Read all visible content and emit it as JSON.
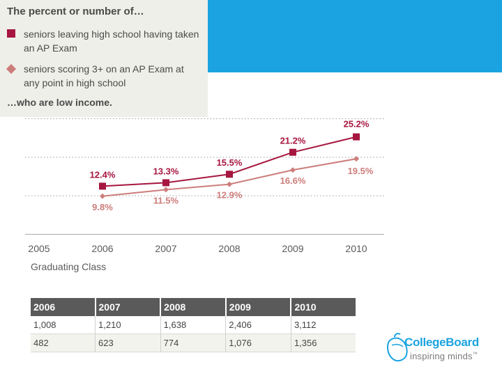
{
  "colors": {
    "series1": "#a6163f",
    "series2": "#cc7d7b",
    "header_band": "#1aa3e0",
    "legend_bg": "#efefe9",
    "table_header": "#5a5a5a"
  },
  "legend": {
    "title": "The percent or number of…",
    "items": [
      {
        "label": "seniors leaving high school having taken an AP Exam",
        "icon": "square-marker-icon"
      },
      {
        "label": "seniors scoring 3+ on an AP Exam at any point in high school",
        "icon": "diamond-marker-icon"
      }
    ],
    "footer": "…who are low income."
  },
  "chart_data": {
    "type": "line",
    "categories": [
      "2005",
      "2006",
      "2007",
      "2008",
      "2009",
      "2010"
    ],
    "xlabel": "Graduating Class",
    "ylabel": "",
    "ylim": [
      0,
      30
    ],
    "grid": true,
    "series": [
      {
        "name": "seniors leaving high school having taken an AP Exam",
        "marker": "square",
        "x": [
          "2006",
          "2007",
          "2008",
          "2009",
          "2010"
        ],
        "values": [
          12.4,
          13.3,
          15.5,
          21.2,
          25.2
        ],
        "labels": [
          "12.4%",
          "13.3%",
          "15.5%",
          "21.2%",
          "25.2%"
        ]
      },
      {
        "name": "seniors scoring 3+ on an AP Exam at any point in high school",
        "marker": "diamond",
        "x": [
          "2006",
          "2007",
          "2008",
          "2009",
          "2010"
        ],
        "values": [
          9.8,
          11.5,
          12.9,
          16.6,
          19.5
        ],
        "labels": [
          "9.8%",
          "11.5%",
          "12.9%",
          "16.6%",
          "19.5%"
        ]
      }
    ]
  },
  "table": {
    "headers": [
      "2006",
      "2007",
      "2008",
      "2009",
      "2010"
    ],
    "rows": [
      [
        "1,008",
        "1,210",
        "1,638",
        "2,406",
        "3,112"
      ],
      [
        "482",
        "623",
        "774",
        "1,076",
        "1,356"
      ]
    ]
  },
  "logo": {
    "name": "CollegeBoard",
    "tagline": "inspiring minds",
    "trademark": "™"
  }
}
